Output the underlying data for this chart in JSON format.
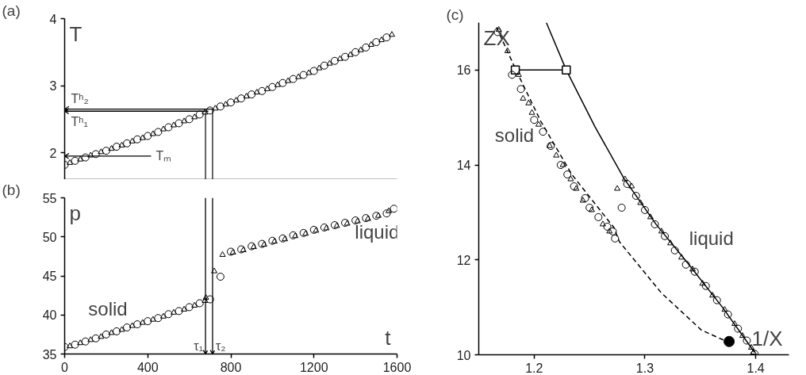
{
  "chart_data": [
    {
      "type": "scatter",
      "title": "(a)",
      "ylabel": "T",
      "xlim": [
        0,
        1600
      ],
      "ylim": [
        1.6,
        4
      ],
      "yticks": [
        2,
        3,
        4
      ],
      "tick_labels": "y",
      "series": [
        {
          "marker": "circle",
          "color": "#000000",
          "x": [
            0,
            50,
            100,
            150,
            200,
            250,
            300,
            350,
            400,
            450,
            500,
            550,
            600,
            650,
            700,
            750,
            800,
            850,
            900,
            950,
            1000,
            1050,
            1100,
            1150,
            1200,
            1250,
            1300,
            1350,
            1400,
            1450,
            1500,
            1550
          ],
          "values": [
            1.82,
            1.88,
            1.93,
            1.98,
            2.03,
            2.09,
            2.14,
            2.2,
            2.25,
            2.31,
            2.38,
            2.44,
            2.5,
            2.57,
            2.63,
            2.69,
            2.75,
            2.81,
            2.87,
            2.92,
            2.98,
            3.04,
            3.1,
            3.16,
            3.22,
            3.3,
            3.37,
            3.43,
            3.5,
            3.57,
            3.65,
            3.72
          ]
        },
        {
          "marker": "triangle",
          "color": "#000000",
          "x": [
            25,
            75,
            125,
            175,
            225,
            275,
            325,
            375,
            425,
            475,
            525,
            575,
            625,
            675,
            725,
            775,
            825,
            875,
            925,
            975,
            1025,
            1075,
            1125,
            1175,
            1225,
            1275,
            1325,
            1375,
            1425,
            1475,
            1525,
            1575
          ],
          "values": [
            1.85,
            1.9,
            1.96,
            2.01,
            2.06,
            2.11,
            2.17,
            2.22,
            2.28,
            2.35,
            2.41,
            2.47,
            2.53,
            2.6,
            2.66,
            2.72,
            2.78,
            2.84,
            2.9,
            2.95,
            3.01,
            3.07,
            3.13,
            3.19,
            3.26,
            3.33,
            3.4,
            3.46,
            3.53,
            3.61,
            3.68,
            3.76
          ]
        }
      ],
      "ref_lines": [
        {
          "axis": "y",
          "value": 2.65,
          "label": "Tʰ₂"
        },
        {
          "axis": "y",
          "value": 2.62,
          "label": "Tʰ₁"
        },
        {
          "axis": "y",
          "value": 1.95,
          "label": "Tₘ"
        },
        {
          "axis": "x",
          "value": 678,
          "label": null
        },
        {
          "axis": "x",
          "value": 712,
          "label": null
        }
      ]
    },
    {
      "type": "scatter",
      "title": "(b)",
      "ylabel": "p",
      "xlabel": "t",
      "xlim": [
        0,
        1600
      ],
      "xticks": [
        0,
        400,
        800,
        1200,
        1600
      ],
      "ylim": [
        35,
        55
      ],
      "yticks": [
        35,
        40,
        45,
        50,
        55
      ],
      "series": [
        {
          "marker": "circle",
          "color": "#000000",
          "x": [
            0,
            50,
            100,
            150,
            200,
            250,
            300,
            350,
            400,
            450,
            500,
            550,
            600,
            650,
            700,
            750,
            800,
            850,
            900,
            950,
            1000,
            1050,
            1100,
            1150,
            1200,
            1250,
            1300,
            1350,
            1400,
            1450,
            1500,
            1550,
            1585
          ],
          "values": [
            35.9,
            36.2,
            36.6,
            37.0,
            37.5,
            37.9,
            38.4,
            38.8,
            39.2,
            39.6,
            40.1,
            40.5,
            41.0,
            41.5,
            42.0,
            44.9,
            48.1,
            48.4,
            48.8,
            49.1,
            49.5,
            49.8,
            50.2,
            50.5,
            50.9,
            51.2,
            51.5,
            51.8,
            52.1,
            52.4,
            52.7,
            53.0,
            53.6
          ]
        },
        {
          "marker": "triangle",
          "color": "#000000",
          "x": [
            25,
            75,
            125,
            175,
            225,
            275,
            325,
            375,
            425,
            475,
            525,
            575,
            625,
            675,
            680,
            720,
            760,
            810,
            860,
            910,
            960,
            1010,
            1060,
            1110,
            1160,
            1210,
            1260,
            1310,
            1360,
            1410,
            1460,
            1510,
            1560
          ],
          "values": [
            36.0,
            36.4,
            36.8,
            37.2,
            37.7,
            38.1,
            38.6,
            39.0,
            39.4,
            39.8,
            40.3,
            40.7,
            41.2,
            41.8,
            42.2,
            45.6,
            47.7,
            48.0,
            48.3,
            48.7,
            49.0,
            49.4,
            49.7,
            50.1,
            50.4,
            50.8,
            51.1,
            51.4,
            51.7,
            52.0,
            52.3,
            52.7,
            53.3
          ]
        }
      ],
      "ref_lines": [
        {
          "axis": "x",
          "value": 678,
          "label": "τ₁"
        },
        {
          "axis": "x",
          "value": 712,
          "label": "τ₂"
        }
      ],
      "annotations": [
        "solid",
        "liquid"
      ]
    },
    {
      "type": "scatter",
      "title": "(c)",
      "ylabel": "ZX",
      "xlabel": "1/X",
      "xlim": [
        1.15,
        1.43
      ],
      "xticks": [
        1.2,
        1.3,
        1.4
      ],
      "ylim": [
        10,
        17
      ],
      "yticks": [
        10,
        12,
        14,
        16
      ],
      "series": [
        {
          "type": "line",
          "marker": "none",
          "line_style": "solid",
          "color": "#000000",
          "x": [
            1.211,
            1.229,
            1.255,
            1.281,
            1.31,
            1.339,
            1.37,
            1.399
          ],
          "values": [
            17.0,
            16.0,
            14.8,
            13.72,
            12.75,
            11.92,
            11.0,
            10.05
          ]
        },
        {
          "type": "line",
          "marker": "none",
          "line_style": "dashed",
          "color": "#000000",
          "x": [
            1.166,
            1.184,
            1.206,
            1.234,
            1.272,
            1.277,
            1.315,
            1.351,
            1.372
          ],
          "values": [
            16.9,
            15.98,
            14.92,
            13.8,
            12.68,
            12.38,
            11.3,
            10.52,
            10.3
          ]
        },
        {
          "type": "line",
          "marker": "square",
          "line_style": "solid",
          "color": "#000000",
          "x": [
            1.183,
            1.229
          ],
          "values": [
            16.0,
            16.0
          ]
        },
        {
          "marker": "circle",
          "color": "#000000",
          "x": [
            1.167,
            1.18,
            1.188,
            1.2,
            1.208,
            1.215,
            1.224,
            1.23,
            1.236,
            1.246,
            1.25,
            1.258,
            1.266,
            1.271,
            1.273,
            1.279,
            1.284,
            1.292,
            1.3,
            1.309,
            1.318,
            1.327,
            1.337,
            1.345,
            1.355,
            1.365,
            1.375,
            1.384,
            1.392,
            1.399
          ],
          "values": [
            16.8,
            15.9,
            15.6,
            14.95,
            14.7,
            14.4,
            14.0,
            13.8,
            13.55,
            13.3,
            13.1,
            12.9,
            12.7,
            12.6,
            12.45,
            13.1,
            13.6,
            13.35,
            13.05,
            12.75,
            12.5,
            12.2,
            11.9,
            11.75,
            11.45,
            11.15,
            10.85,
            10.55,
            10.3,
            10.02
          ]
        },
        {
          "marker": "triangle",
          "color": "#000000",
          "x": [
            1.168,
            1.176,
            1.186,
            1.19,
            1.195,
            1.198,
            1.204,
            1.214,
            1.22,
            1.226,
            1.233,
            1.238,
            1.244,
            1.252,
            1.262,
            1.268,
            1.275,
            1.282,
            1.288,
            1.296,
            1.305,
            1.315,
            1.323,
            1.333,
            1.343,
            1.352,
            1.361,
            1.372,
            1.381,
            1.388,
            1.396,
            1.398
          ],
          "values": [
            16.85,
            16.4,
            15.9,
            15.4,
            15.3,
            15.1,
            14.85,
            14.4,
            14.2,
            14.0,
            13.7,
            13.5,
            13.25,
            13.05,
            12.75,
            12.6,
            13.5,
            13.7,
            13.55,
            13.2,
            12.9,
            12.6,
            12.35,
            12.05,
            11.8,
            11.5,
            11.25,
            10.95,
            10.65,
            10.4,
            10.15,
            10.05
          ]
        },
        {
          "type": "bubble",
          "color": "#000000",
          "x": [
            1.376
          ],
          "values": [
            10.28
          ],
          "sizes": [
            1
          ]
        }
      ],
      "annotations": [
        "solid",
        "liquid"
      ]
    }
  ]
}
